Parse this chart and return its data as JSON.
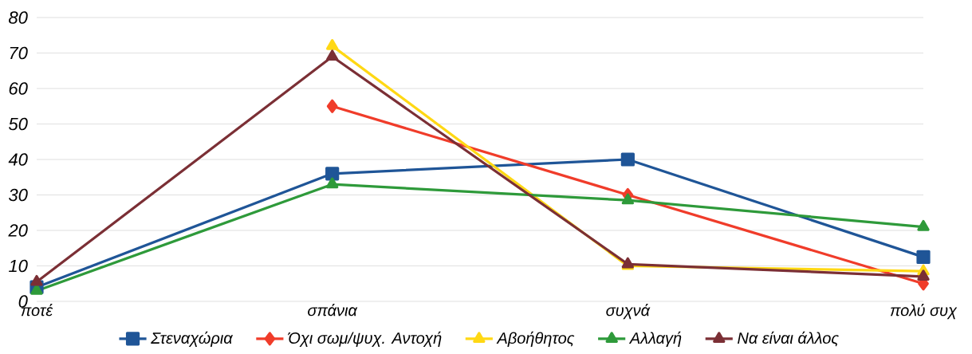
{
  "chart_data": {
    "type": "line",
    "categories": [
      "ποτέ",
      "σπάνια",
      "συχνά",
      "πολύ συχ"
    ],
    "ylim": [
      0,
      80
    ],
    "yticks": [
      0,
      10,
      20,
      30,
      40,
      50,
      60,
      70,
      80
    ],
    "grid": "y",
    "legend": "bottom",
    "line_style": "solid",
    "series": [
      {
        "name": "Στεναχώρια",
        "color": "#1f5597",
        "marker": "square",
        "values": [
          4,
          36,
          40,
          12.5
        ]
      },
      {
        "name": "Όχι σωμ/ψυχ. Αντοχή",
        "color": "#f03c2a",
        "marker": "diamond",
        "values": [
          null,
          55,
          30,
          5
        ]
      },
      {
        "name": "Αβοήθητος",
        "color": "#ffd814",
        "marker": "triangle",
        "values": [
          null,
          72,
          10,
          8.5
        ]
      },
      {
        "name": "Αλλαγή",
        "color": "#2e9a3a",
        "marker": "triangle",
        "values": [
          3,
          33,
          28.5,
          21
        ]
      },
      {
        "name": "Να είναι άλλος",
        "color": "#7b2f35",
        "marker": "triangle",
        "values": [
          5.5,
          69,
          10.5,
          7
        ]
      }
    ]
  }
}
